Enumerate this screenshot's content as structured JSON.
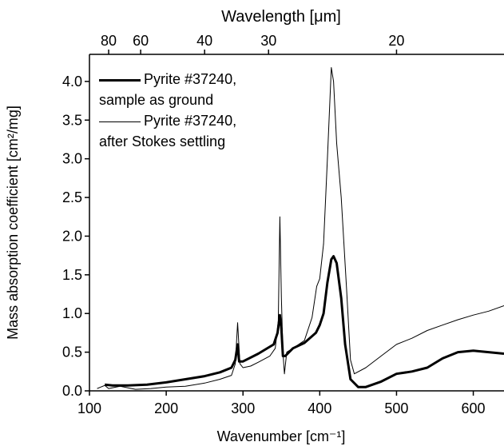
{
  "chart_data": {
    "type": "line",
    "x_label": "Wavenumber [cm⁻¹]",
    "y_label": "Mass absorption coefficient [cm²/mg]",
    "x2_label": "Wavelength [μm]",
    "xlim": [
      100,
      640
    ],
    "ylim": [
      0,
      4.35
    ],
    "xticks": [
      100,
      200,
      300,
      400,
      500,
      600
    ],
    "yticks": [
      {
        "value": 0,
        "label": "0.0"
      },
      0.5,
      {
        "value": 1,
        "label": "1.0"
      },
      1.5,
      {
        "value": 2,
        "label": "2.0"
      },
      2.5,
      {
        "value": 3,
        "label": "3.0"
      },
      3.5,
      {
        "value": 4,
        "label": "4.0"
      }
    ],
    "x2ticks": [
      {
        "value": 125,
        "label": "80"
      },
      {
        "value": 166.7,
        "label": "60"
      },
      {
        "value": 250,
        "label": "40"
      },
      {
        "value": 333.3,
        "label": "30"
      },
      {
        "value": 500,
        "label": "20"
      }
    ],
    "legend": "upper left",
    "series": [
      {
        "name": "Pyrite #37240, sample as ground",
        "color": "#000000",
        "width": 3,
        "x": [
          120,
          130,
          150,
          175,
          200,
          225,
          250,
          270,
          285,
          290,
          293,
          295,
          300,
          320,
          340,
          345,
          348,
          350,
          352,
          355,
          365,
          380,
          395,
          400,
          405,
          410,
          415,
          418,
          422,
          428,
          433,
          440,
          450,
          460,
          480,
          500,
          520,
          540,
          560,
          580,
          600,
          620,
          640
        ],
        "values": [
          0.08,
          0.07,
          0.07,
          0.08,
          0.11,
          0.15,
          0.19,
          0.24,
          0.3,
          0.4,
          0.6,
          0.38,
          0.38,
          0.48,
          0.6,
          0.75,
          0.98,
          0.8,
          0.45,
          0.45,
          0.55,
          0.62,
          0.75,
          0.85,
          1.0,
          1.4,
          1.7,
          1.74,
          1.65,
          1.2,
          0.6,
          0.15,
          0.05,
          0.05,
          0.12,
          0.22,
          0.25,
          0.3,
          0.42,
          0.5,
          0.52,
          0.5,
          0.48
        ]
      },
      {
        "name": "Pyrite #37240, after Stokes settling",
        "color": "#000000",
        "width": 1,
        "x": [
          110,
          120,
          125,
          140,
          160,
          180,
          200,
          225,
          250,
          270,
          285,
          290,
          293,
          296,
          300,
          310,
          320,
          335,
          342,
          346,
          348,
          350,
          352,
          354,
          357,
          365,
          380,
          390,
          396,
          400,
          405,
          410,
          415,
          418,
          422,
          428,
          435,
          440,
          445,
          460,
          480,
          500,
          520,
          540,
          560,
          580,
          600,
          620,
          640
        ],
        "values": [
          0.03,
          0.07,
          0.03,
          0.06,
          0.02,
          0.03,
          0.05,
          0.06,
          0.1,
          0.15,
          0.2,
          0.35,
          0.88,
          0.35,
          0.3,
          0.32,
          0.37,
          0.45,
          0.55,
          0.9,
          2.25,
          1.2,
          0.5,
          0.22,
          0.5,
          0.55,
          0.65,
          0.95,
          1.35,
          1.45,
          1.9,
          3.0,
          4.18,
          4.0,
          3.2,
          2.5,
          1.3,
          0.4,
          0.22,
          0.3,
          0.45,
          0.6,
          0.68,
          0.78,
          0.85,
          0.92,
          0.98,
          1.03,
          1.1
        ]
      }
    ]
  }
}
